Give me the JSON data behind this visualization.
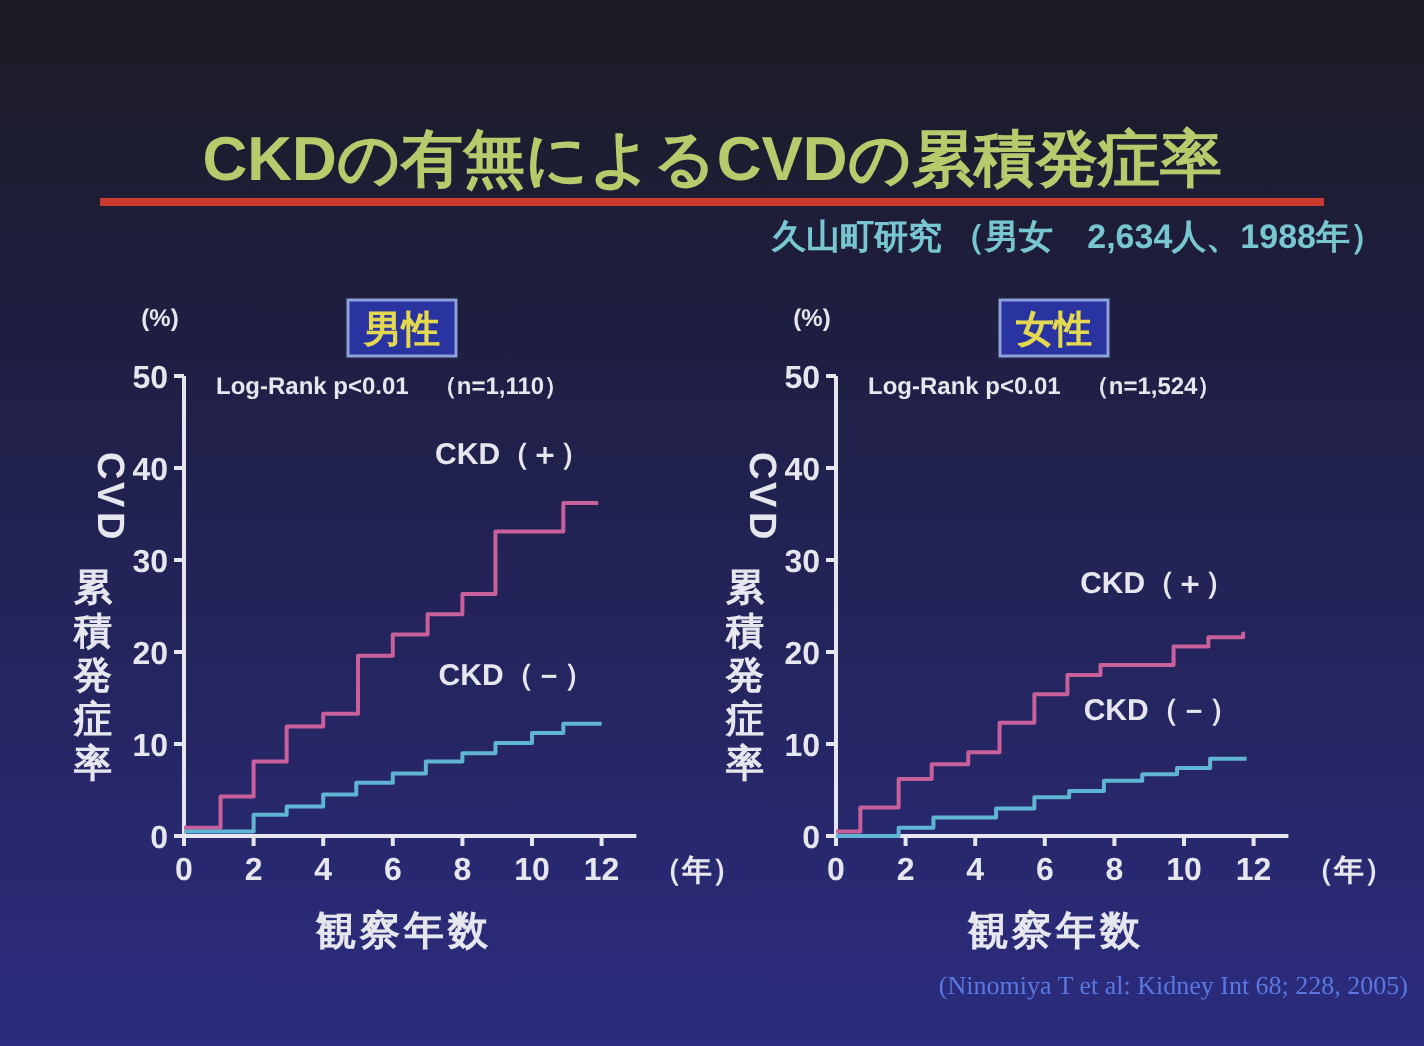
{
  "chart_data": [
    {
      "type": "step",
      "title": "CKDの有無によるCVDの累積発症率",
      "xlabel": "観察年数",
      "ylabel": "CVD 累積発症率",
      "annotations": [
        "男性",
        "(%)",
        "Log-Rank p<0.01　（n=1,110）",
        "（年）"
      ],
      "xlim": [
        0,
        13
      ],
      "ylim": [
        0,
        50
      ],
      "xticks": [
        0,
        2,
        4,
        6,
        8,
        10,
        12
      ],
      "yticks": [
        0,
        10,
        20,
        30,
        40,
        50
      ],
      "series": [
        {
          "name": "CKD（＋）",
          "color": "#c8609c",
          "x": [
            0,
            1.05,
            2.0,
            2.95,
            4.0,
            5.0,
            6.0,
            7.0,
            8.0,
            8.95,
            10.9,
            11.9
          ],
          "values": [
            0.9,
            4.3,
            8.1,
            11.9,
            13.3,
            19.6,
            21.9,
            24.1,
            26.3,
            33.1,
            36.2,
            36.2
          ]
        },
        {
          "name": "CKD（－）",
          "color": "#60b4d4",
          "x": [
            0,
            2.0,
            2.95,
            4.0,
            4.95,
            6.0,
            6.95,
            8.0,
            8.95,
            10.0,
            10.9,
            12.0
          ],
          "values": [
            0.5,
            2.3,
            3.2,
            4.5,
            5.8,
            6.8,
            8.1,
            9.0,
            10.1,
            11.2,
            12.2,
            12.2
          ]
        }
      ]
    },
    {
      "type": "step",
      "subtitle": "久山町研究 （男女　2,634人、1988年）",
      "xlabel": "観察年数",
      "ylabel": "CVD 累積発症率",
      "annotations": [
        "女性",
        "(%)",
        "Log-Rank p<0.01　（n=1,524）",
        "（年）",
        "(Ninomiya T et al: Kidney Int 68; 228, 2005)"
      ],
      "xlim": [
        0,
        13
      ],
      "ylim": [
        0,
        50
      ],
      "xticks": [
        0,
        2,
        4,
        6,
        8,
        10,
        12
      ],
      "yticks": [
        0,
        10,
        20,
        30,
        40,
        50
      ],
      "series": [
        {
          "name": "CKD（＋）",
          "color": "#c8609c",
          "x": [
            0,
            0.7,
            1.8,
            2.75,
            3.8,
            4.7,
            5.7,
            6.65,
            7.6,
            9.7,
            10.7,
            11.7
          ],
          "values": [
            0.5,
            3.1,
            6.2,
            7.8,
            9.1,
            12.3,
            15.4,
            17.5,
            18.6,
            20.6,
            21.6,
            22.2
          ]
        },
        {
          "name": "CKD（－）",
          "color": "#60b4d4",
          "x": [
            0,
            1.8,
            2.8,
            4.6,
            5.7,
            6.7,
            7.7,
            8.8,
            9.8,
            10.75,
            11.8
          ],
          "values": [
            0,
            0.9,
            2.0,
            3.0,
            4.2,
            4.9,
            6.0,
            6.7,
            7.4,
            8.4,
            8.4
          ]
        }
      ]
    }
  ]
}
